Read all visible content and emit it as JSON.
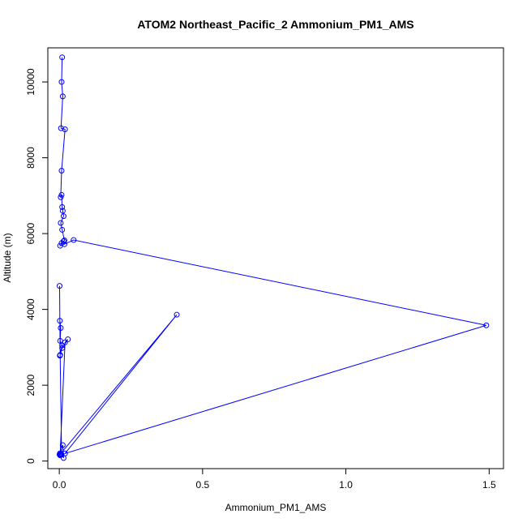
{
  "chart_data": {
    "type": "line",
    "title": "ATOM2 Northeast_Pacific_2 Ammonium_PM1_AMS",
    "xlabel": "Ammonium_PM1_AMS",
    "ylabel": "Altitude (m)",
    "xlim": [
      -0.04,
      1.55
    ],
    "ylim": [
      -200,
      10900
    ],
    "x_ticks": [
      0,
      0.5,
      1,
      1.5
    ],
    "x_tick_labels": [
      "0.0",
      "0.5",
      "1.0",
      "1.5"
    ],
    "y_ticks": [
      0,
      2000,
      4000,
      6000,
      8000,
      10000
    ],
    "y_tick_labels": [
      "0",
      "2000",
      "4000",
      "6000",
      "8000",
      "10000"
    ],
    "grid": false,
    "series_color": "#0000ff",
    "series": [
      {
        "x": [
          0.01,
          0.008,
          0.012,
          0.006,
          0.02,
          0.008,
          0.005,
          0.008,
          0.01,
          0.012,
          0.015,
          0.005,
          0.01,
          0.018,
          0.015,
          0.008,
          0.003,
          0.018,
          0.05,
          1.49,
          0.02,
          0.41,
          0.003,
          0.02,
          0.03,
          0.01,
          0.002,
          0.01,
          0.003,
          0.005,
          0.002,
          0.001,
          0.003,
          0.008,
          0.015,
          0.012,
          0.001,
          0.005,
          0.002,
          0.003,
          0.004
        ],
        "y": [
          10650,
          10000,
          9620,
          8780,
          8750,
          7660,
          6960,
          7020,
          6700,
          6600,
          6460,
          6280,
          6100,
          5820,
          5800,
          5750,
          5680,
          5720,
          5830,
          3580,
          200,
          3860,
          180,
          3130,
          3210,
          2980,
          2780,
          3050,
          3170,
          3510,
          3700,
          4620,
          2800,
          170,
          80,
          420,
          170,
          180,
          200,
          150,
          180
        ]
      }
    ]
  }
}
